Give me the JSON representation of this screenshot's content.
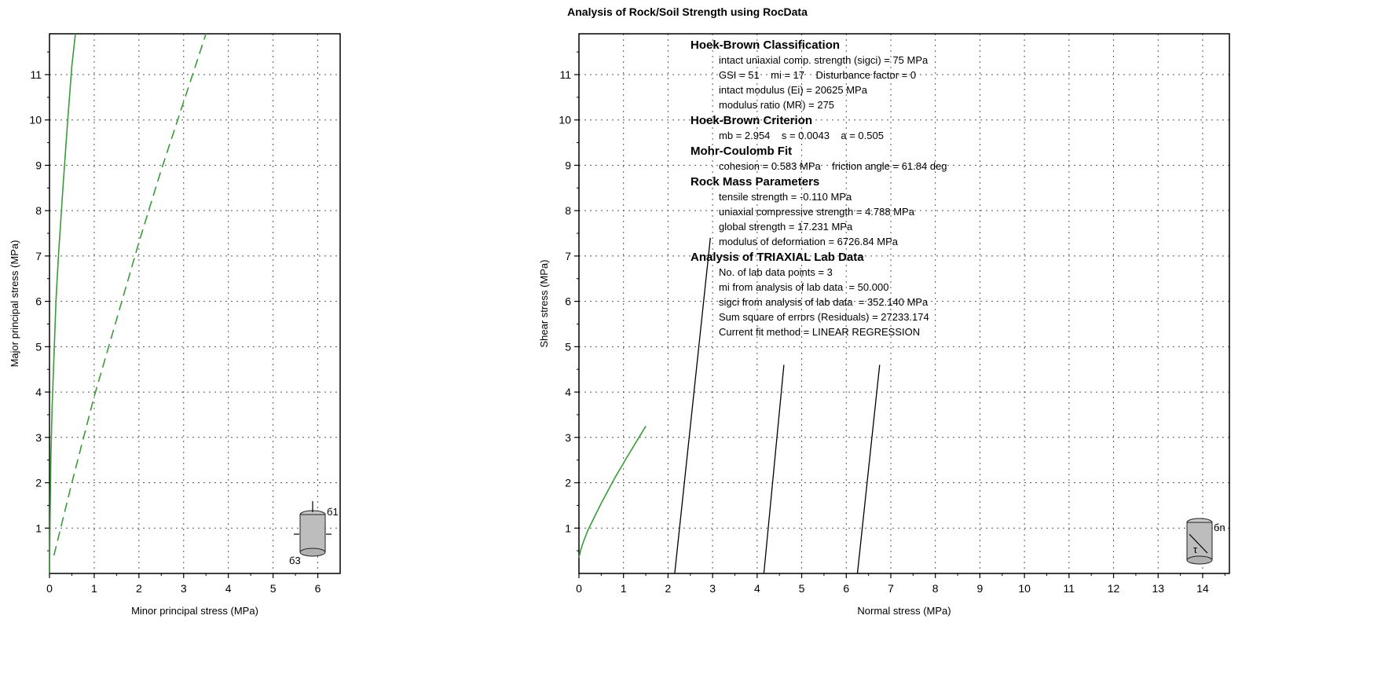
{
  "title": "Analysis of Rock/Soil Strength using RocData",
  "chart_data": [
    {
      "type": "line",
      "xlabel": "Minor principal stress (MPa)",
      "ylabel": "Major principal stress (MPa)",
      "xlim": [
        0,
        6.5
      ],
      "ylim": [
        0,
        11.9
      ],
      "xticks": [
        0,
        1,
        2,
        3,
        4,
        5,
        6
      ],
      "yticks": [
        1,
        2,
        3,
        4,
        5,
        6,
        7,
        8,
        9,
        10,
        11
      ],
      "grid": true,
      "series": [
        {
          "style": "solid",
          "color": "#3a9a3a",
          "x": [
            0,
            0.01,
            0.03,
            0.06,
            0.1,
            0.15,
            0.2,
            0.3,
            0.4,
            0.5,
            0.58
          ],
          "y": [
            0,
            1.0,
            2.5,
            3.7,
            4.8,
            6.1,
            7.0,
            8.5,
            9.9,
            11.2,
            11.9
          ]
        },
        {
          "style": "dashed",
          "color": "#3a9a3a",
          "x": [
            0.1,
            0.5,
            1.0,
            1.5,
            2.0,
            2.5,
            3.0,
            3.5
          ],
          "y": [
            0.4,
            2.0,
            3.9,
            5.6,
            7.3,
            8.9,
            10.4,
            11.9
          ]
        }
      ],
      "icon": "triaxial-cylinder-icon",
      "icon_labels": [
        "б1",
        "б3"
      ]
    },
    {
      "type": "line",
      "xlabel": "Normal stress (MPa)",
      "ylabel": "Shear stress (MPa)",
      "xlim": [
        0,
        14.6
      ],
      "ylim": [
        0,
        11.9
      ],
      "xticks": [
        0,
        1,
        2,
        3,
        4,
        5,
        6,
        7,
        8,
        9,
        10,
        11,
        12,
        13,
        14
      ],
      "yticks": [
        1,
        2,
        3,
        4,
        5,
        6,
        7,
        8,
        9,
        10,
        11
      ],
      "grid": true,
      "series": [
        {
          "style": "solid",
          "color": "#3a9a3a",
          "x": [
            0,
            0.05,
            0.1,
            0.2,
            0.3,
            0.5,
            0.8,
            1.1,
            1.5
          ],
          "y": [
            0.35,
            0.55,
            0.7,
            0.95,
            1.15,
            1.55,
            2.1,
            2.6,
            3.25
          ]
        },
        {
          "style": "solid",
          "color": "#000000",
          "x": [
            2.15,
            2.95
          ],
          "y": [
            0,
            7.4
          ]
        },
        {
          "style": "solid",
          "color": "#000000",
          "x": [
            4.15,
            4.6
          ],
          "y": [
            0,
            4.6
          ]
        },
        {
          "style": "solid",
          "color": "#000000",
          "x": [
            6.25,
            6.75
          ],
          "y": [
            0,
            4.6
          ]
        }
      ],
      "icon": "shear-cylinder-icon",
      "icon_labels": [
        "бn",
        "τ"
      ],
      "annotations": [
        {
          "heading": "Hoek-Brown Classification",
          "lines": [
            "intact uniaxial comp. strength (sigci) = 75 MPa",
            "GSI = 51    mi = 17    Disturbance factor = 0",
            "intact modulus (Ei) = 20625 MPa",
            "modulus ratio (MR) = 275"
          ]
        },
        {
          "heading": "Hoek-Brown Criterion",
          "lines": [
            "mb = 2.954    s = 0.0043    a = 0.505"
          ]
        },
        {
          "heading": "Mohr-Coulomb Fit",
          "lines": [
            "cohesion = 0.583 MPa    friction angle = 61.84 deg"
          ]
        },
        {
          "heading": "Rock Mass Parameters",
          "lines": [
            "tensile strength = -0.110 MPa",
            "uniaxial compressive strength = 4.788 MPa",
            "global strength = 17.231 MPa",
            "modulus of deformation = 6726.84 MPa"
          ]
        },
        {
          "heading": "Analysis of TRIAXIAL Lab Data",
          "lines": [
            "No. of lab data points = 3",
            "mi from analysis of lab data  = 50.000",
            "sigci from analysis of lab data  = 352.140 MPa",
            "Sum square of errors (Residuals) = 27233.174",
            "Current fit method = LINEAR REGRESSION"
          ]
        }
      ]
    }
  ]
}
